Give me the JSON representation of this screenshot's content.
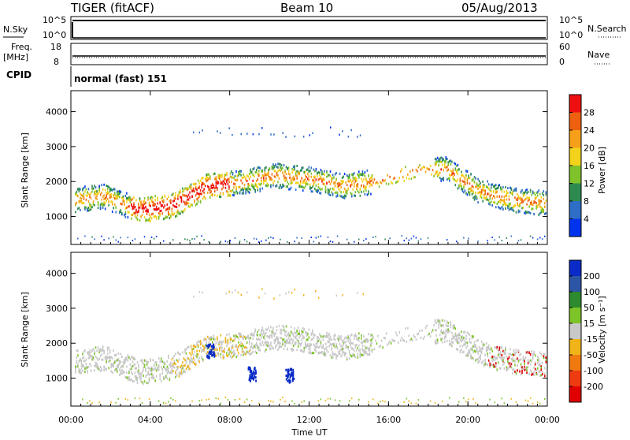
{
  "header": {
    "radar": "TIGER (fitACF)",
    "beam": "Beam 10",
    "date": "05/Aug/2013"
  },
  "strips": {
    "nsky": {
      "label": "N.Sky",
      "ticks": [
        "10^5",
        "10^0"
      ]
    },
    "nsearch": {
      "label": "N.Search",
      "ticks": [
        "10^5",
        "10^0"
      ]
    },
    "freq": {
      "label_line1": "Freq.",
      "label_line2": "[MHz]",
      "ticks": [
        "18",
        "8"
      ]
    },
    "nave": {
      "label": "Nave",
      "ticks": [
        "60",
        "0"
      ]
    },
    "cpid": {
      "label": "CPID",
      "value": "normal (fast) 151"
    }
  },
  "chart_data": [
    {
      "type": "heatmap",
      "ylabel": "Slant Range [km]",
      "xlabel": "",
      "yticks": [
        "1000",
        "2000",
        "3000",
        "4000"
      ],
      "ylim": [
        200,
        4600
      ],
      "xlim": [
        0,
        24
      ],
      "colorbar": {
        "label": "Power [dB]",
        "ticks": [
          "4",
          "8",
          "12",
          "16",
          "20",
          "24",
          "28"
        ],
        "colors": [
          "#0033ee",
          "#2f6ec6",
          "#2e8a4f",
          "#7fc22c",
          "#f2d21a",
          "#f5a018",
          "#ee6010",
          "#ee1010"
        ]
      },
      "bands": [
        {
          "x": [
            0.2,
            24
          ],
          "center": [
            1500,
            1600,
            1200,
            1350,
            1900,
            2000,
            2200,
            2100,
            1900,
            2050,
            2300,
            2400,
            1750,
            1500,
            1400
          ],
          "width": 350
        }
      ]
    },
    {
      "type": "heatmap",
      "ylabel": "Slant Range [km]",
      "xlabel": "Time UT",
      "yticks": [
        "1000",
        "2000",
        "3000",
        "4000"
      ],
      "ylim": [
        200,
        4600
      ],
      "xlim": [
        0,
        24
      ],
      "xticks": [
        "00:00",
        "04:00",
        "08:00",
        "12:00",
        "16:00",
        "20:00",
        "00:00"
      ],
      "colorbar": {
        "label": "Velocity [m s⁻¹]",
        "ticks": [
          "200",
          "100",
          "50",
          "15",
          "-15",
          "-50",
          "-100",
          "-200"
        ],
        "colors": [
          "#0a2bc7",
          "#2d55a5",
          "#2e8a2e",
          "#7cc428",
          "#c8c8c8",
          "#f0b418",
          "#f07a10",
          "#ee3c10",
          "#e00000"
        ]
      }
    }
  ]
}
